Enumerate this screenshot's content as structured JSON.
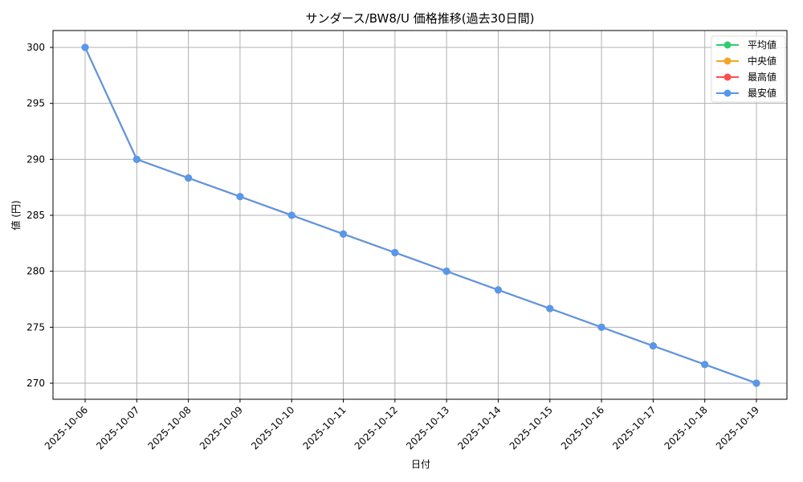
{
  "chart_data": {
    "type": "line",
    "title": "サンダース/BW8/U 価格推移(過去30日間)",
    "xlabel": "日付",
    "ylabel": "値 (円)",
    "categories": [
      "2025-10-06",
      "2025-10-07",
      "2025-10-08",
      "2025-10-09",
      "2025-10-10",
      "2025-10-11",
      "2025-10-12",
      "2025-10-13",
      "2025-10-14",
      "2025-10-15",
      "2025-10-16",
      "2025-10-17",
      "2025-10-18",
      "2025-10-19"
    ],
    "series": [
      {
        "name": "平均値",
        "color": "#2ecc71",
        "values": [
          300,
          290,
          288.33,
          286.67,
          285,
          283.33,
          281.67,
          280,
          278.33,
          276.67,
          275,
          273.33,
          271.67,
          270
        ]
      },
      {
        "name": "中央値",
        "color": "#f5a623",
        "values": [
          300,
          290,
          288.33,
          286.67,
          285,
          283.33,
          281.67,
          280,
          278.33,
          276.67,
          275,
          273.33,
          271.67,
          270
        ]
      },
      {
        "name": "最高値",
        "color": "#ff4d4d",
        "values": [
          300,
          290,
          288.33,
          286.67,
          285,
          283.33,
          281.67,
          280,
          278.33,
          276.67,
          275,
          273.33,
          271.67,
          270
        ]
      },
      {
        "name": "最安値",
        "color": "#5599ee",
        "values": [
          300,
          290,
          288.33,
          286.67,
          285,
          283.33,
          281.67,
          280,
          278.33,
          276.67,
          275,
          273.33,
          271.67,
          270
        ]
      }
    ],
    "yticks": [
      270,
      275,
      280,
      285,
      290,
      295,
      300
    ],
    "ylim": [
      268.5,
      301.5
    ],
    "grid": true,
    "legend_position": "upper right"
  }
}
